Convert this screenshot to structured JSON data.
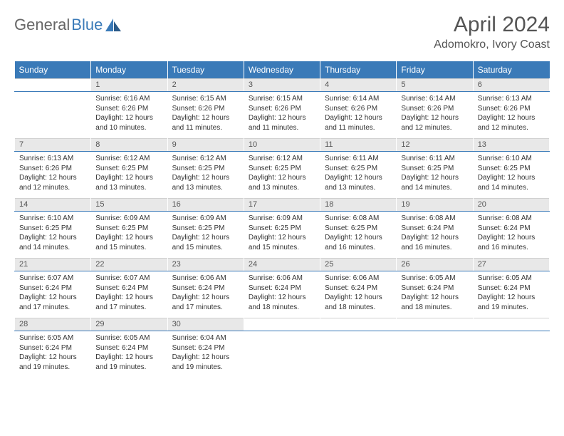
{
  "brand": {
    "part1": "General",
    "part2": "Blue"
  },
  "title": "April 2024",
  "location": "Adomokro, Ivory Coast",
  "colors": {
    "header_bg": "#3a7ab8",
    "header_text": "#ffffff",
    "daynum_bg": "#e8e8e8",
    "border_accent": "#3a7ab8",
    "text": "#333333",
    "muted": "#555555"
  },
  "weekdays": [
    "Sunday",
    "Monday",
    "Tuesday",
    "Wednesday",
    "Thursday",
    "Friday",
    "Saturday"
  ],
  "weeks": [
    [
      null,
      {
        "n": "1",
        "sr": "6:16 AM",
        "ss": "6:26 PM",
        "dl": "12 hours and 10 minutes."
      },
      {
        "n": "2",
        "sr": "6:15 AM",
        "ss": "6:26 PM",
        "dl": "12 hours and 11 minutes."
      },
      {
        "n": "3",
        "sr": "6:15 AM",
        "ss": "6:26 PM",
        "dl": "12 hours and 11 minutes."
      },
      {
        "n": "4",
        "sr": "6:14 AM",
        "ss": "6:26 PM",
        "dl": "12 hours and 11 minutes."
      },
      {
        "n": "5",
        "sr": "6:14 AM",
        "ss": "6:26 PM",
        "dl": "12 hours and 12 minutes."
      },
      {
        "n": "6",
        "sr": "6:13 AM",
        "ss": "6:26 PM",
        "dl": "12 hours and 12 minutes."
      }
    ],
    [
      {
        "n": "7",
        "sr": "6:13 AM",
        "ss": "6:26 PM",
        "dl": "12 hours and 12 minutes."
      },
      {
        "n": "8",
        "sr": "6:12 AM",
        "ss": "6:25 PM",
        "dl": "12 hours and 13 minutes."
      },
      {
        "n": "9",
        "sr": "6:12 AM",
        "ss": "6:25 PM",
        "dl": "12 hours and 13 minutes."
      },
      {
        "n": "10",
        "sr": "6:12 AM",
        "ss": "6:25 PM",
        "dl": "12 hours and 13 minutes."
      },
      {
        "n": "11",
        "sr": "6:11 AM",
        "ss": "6:25 PM",
        "dl": "12 hours and 13 minutes."
      },
      {
        "n": "12",
        "sr": "6:11 AM",
        "ss": "6:25 PM",
        "dl": "12 hours and 14 minutes."
      },
      {
        "n": "13",
        "sr": "6:10 AM",
        "ss": "6:25 PM",
        "dl": "12 hours and 14 minutes."
      }
    ],
    [
      {
        "n": "14",
        "sr": "6:10 AM",
        "ss": "6:25 PM",
        "dl": "12 hours and 14 minutes."
      },
      {
        "n": "15",
        "sr": "6:09 AM",
        "ss": "6:25 PM",
        "dl": "12 hours and 15 minutes."
      },
      {
        "n": "16",
        "sr": "6:09 AM",
        "ss": "6:25 PM",
        "dl": "12 hours and 15 minutes."
      },
      {
        "n": "17",
        "sr": "6:09 AM",
        "ss": "6:25 PM",
        "dl": "12 hours and 15 minutes."
      },
      {
        "n": "18",
        "sr": "6:08 AM",
        "ss": "6:25 PM",
        "dl": "12 hours and 16 minutes."
      },
      {
        "n": "19",
        "sr": "6:08 AM",
        "ss": "6:24 PM",
        "dl": "12 hours and 16 minutes."
      },
      {
        "n": "20",
        "sr": "6:08 AM",
        "ss": "6:24 PM",
        "dl": "12 hours and 16 minutes."
      }
    ],
    [
      {
        "n": "21",
        "sr": "6:07 AM",
        "ss": "6:24 PM",
        "dl": "12 hours and 17 minutes."
      },
      {
        "n": "22",
        "sr": "6:07 AM",
        "ss": "6:24 PM",
        "dl": "12 hours and 17 minutes."
      },
      {
        "n": "23",
        "sr": "6:06 AM",
        "ss": "6:24 PM",
        "dl": "12 hours and 17 minutes."
      },
      {
        "n": "24",
        "sr": "6:06 AM",
        "ss": "6:24 PM",
        "dl": "12 hours and 18 minutes."
      },
      {
        "n": "25",
        "sr": "6:06 AM",
        "ss": "6:24 PM",
        "dl": "12 hours and 18 minutes."
      },
      {
        "n": "26",
        "sr": "6:05 AM",
        "ss": "6:24 PM",
        "dl": "12 hours and 18 minutes."
      },
      {
        "n": "27",
        "sr": "6:05 AM",
        "ss": "6:24 PM",
        "dl": "12 hours and 19 minutes."
      }
    ],
    [
      {
        "n": "28",
        "sr": "6:05 AM",
        "ss": "6:24 PM",
        "dl": "12 hours and 19 minutes."
      },
      {
        "n": "29",
        "sr": "6:05 AM",
        "ss": "6:24 PM",
        "dl": "12 hours and 19 minutes."
      },
      {
        "n": "30",
        "sr": "6:04 AM",
        "ss": "6:24 PM",
        "dl": "12 hours and 19 minutes."
      },
      null,
      null,
      null,
      null
    ]
  ],
  "labels": {
    "sunrise": "Sunrise:",
    "sunset": "Sunset:",
    "daylight": "Daylight:"
  }
}
